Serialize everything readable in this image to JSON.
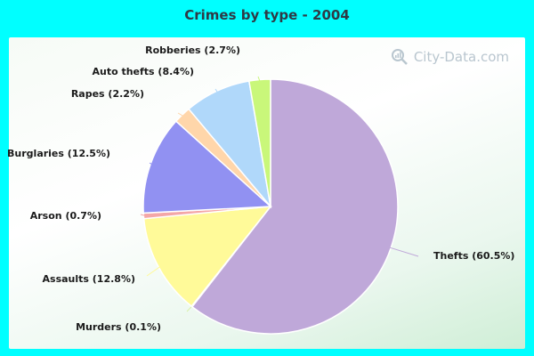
{
  "chart_data": {
    "type": "pie",
    "title": "Crimes by type - 2004",
    "slices": [
      {
        "label": "Thefts (60.5%)",
        "value": 60.5,
        "color": "#BFA8D9"
      },
      {
        "label": "Murders (0.1%)",
        "value": 0.1,
        "color": "#D8F0A8"
      },
      {
        "label": "Assaults (12.8%)",
        "value": 12.8,
        "color": "#FFFA99"
      },
      {
        "label": "Arson (0.7%)",
        "value": 0.7,
        "color": "#F4A7A7"
      },
      {
        "label": "Burglaries (12.5%)",
        "value": 12.5,
        "color": "#9191F2"
      },
      {
        "label": "Rapes (2.2%)",
        "value": 2.2,
        "color": "#FFD6AA"
      },
      {
        "label": "Auto thefts (8.4%)",
        "value": 8.4,
        "color": "#B0D8FA"
      },
      {
        "label": "Robberies (2.7%)",
        "value": 2.7,
        "color": "#C9F77A"
      }
    ],
    "start_angle_deg": 0,
    "direction": "clockwise"
  },
  "watermark": {
    "text": "City-Data.com"
  }
}
